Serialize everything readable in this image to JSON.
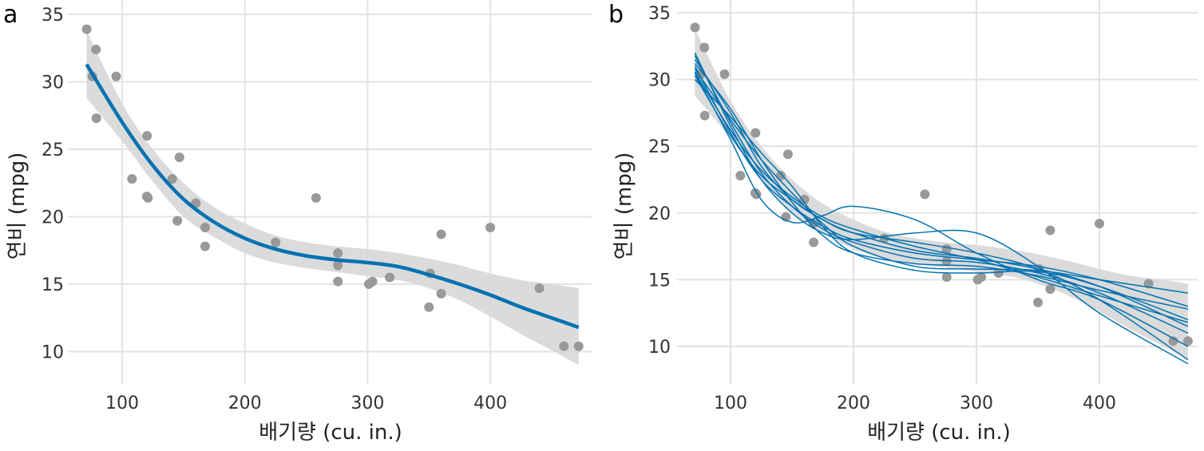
{
  "chart_data": [
    {
      "panel_label": "a",
      "type": "scatter",
      "xlabel": "배기량 (cu. in.)",
      "ylabel": "연비 (mpg)",
      "xticks": [
        100,
        200,
        300,
        400
      ],
      "yticks": [
        10,
        15,
        20,
        25,
        30,
        35
      ],
      "grid": true,
      "colors": {
        "points": "#999999",
        "line": "#0072B2",
        "band": "#D9D9D9"
      },
      "points": [
        [
          160,
          21.0
        ],
        [
          160,
          21.0
        ],
        [
          108,
          22.8
        ],
        [
          258,
          21.4
        ],
        [
          360,
          18.7
        ],
        [
          225,
          18.1
        ],
        [
          360,
          14.3
        ],
        [
          146.7,
          24.4
        ],
        [
          140.8,
          22.8
        ],
        [
          167.6,
          19.2
        ],
        [
          167.6,
          17.8
        ],
        [
          275.8,
          16.4
        ],
        [
          275.8,
          17.3
        ],
        [
          275.8,
          15.2
        ],
        [
          472,
          10.4
        ],
        [
          460,
          10.4
        ],
        [
          440,
          14.7
        ],
        [
          78.7,
          32.4
        ],
        [
          75.7,
          30.4
        ],
        [
          71.1,
          33.9
        ],
        [
          120.1,
          21.5
        ],
        [
          318,
          15.5
        ],
        [
          304,
          15.2
        ],
        [
          350,
          13.3
        ],
        [
          400,
          19.2
        ],
        [
          79,
          27.3
        ],
        [
          120.3,
          26.0
        ],
        [
          95.1,
          30.4
        ],
        [
          351,
          15.8
        ],
        [
          145,
          19.7
        ],
        [
          301,
          15.0
        ],
        [
          121,
          21.4
        ]
      ],
      "smooth_x": [
        71,
        100,
        125,
        150,
        175,
        200,
        225,
        250,
        275,
        300,
        325,
        350,
        375,
        400,
        425,
        450,
        472
      ],
      "smooth_y": [
        31.3,
        27.0,
        23.8,
        21.3,
        19.6,
        18.4,
        17.6,
        17.1,
        16.8,
        16.6,
        16.3,
        15.7,
        15.0,
        14.2,
        13.3,
        12.5,
        11.8
      ],
      "band_lower": [
        28.8,
        25.6,
        22.6,
        20.0,
        18.5,
        17.3,
        16.6,
        16.2,
        15.9,
        15.6,
        15.3,
        14.7,
        13.8,
        12.6,
        11.3,
        10.1,
        9.0
      ],
      "band_upper": [
        33.8,
        28.4,
        25.0,
        22.5,
        20.7,
        19.5,
        18.6,
        18.1,
        17.8,
        17.6,
        17.3,
        16.9,
        16.4,
        15.8,
        15.3,
        15.0,
        14.7
      ]
    },
    {
      "panel_label": "b",
      "type": "scatter",
      "xlabel": "배기량 (cu. in.)",
      "ylabel": "연비 (mpg)",
      "xticks": [
        100,
        200,
        300,
        400
      ],
      "yticks": [
        10,
        15,
        20,
        25,
        30,
        35
      ],
      "grid": true,
      "colors": {
        "points": "#999999",
        "line": "#0072B2",
        "band": "#D9D9D9"
      },
      "curve_x": [
        71,
        100,
        125,
        150,
        175,
        200,
        250,
        300,
        350,
        400,
        472
      ],
      "curves": [
        [
          31.5,
          27.5,
          23.5,
          21.0,
          19.5,
          18.5,
          17.2,
          16.6,
          15.8,
          14.5,
          11.5
        ],
        [
          30.5,
          25.5,
          21.0,
          19.3,
          19.8,
          20.5,
          19.5,
          17.0,
          15.0,
          13.5,
          10.0
        ],
        [
          32.0,
          26.5,
          22.5,
          20.0,
          18.5,
          18.0,
          18.5,
          18.5,
          16.0,
          12.5,
          8.7
        ],
        [
          30.8,
          27.0,
          24.0,
          21.5,
          19.2,
          17.5,
          16.0,
          15.8,
          15.7,
          15.0,
          14.0
        ],
        [
          31.0,
          26.0,
          22.5,
          20.5,
          19.0,
          18.0,
          17.0,
          16.5,
          16.0,
          15.0,
          13.0
        ],
        [
          30.0,
          27.2,
          24.5,
          22.0,
          19.0,
          17.0,
          15.7,
          15.5,
          15.6,
          14.5,
          12.0
        ],
        [
          31.8,
          26.8,
          23.0,
          20.5,
          18.8,
          17.8,
          16.6,
          16.3,
          15.5,
          14.0,
          11.0
        ],
        [
          30.3,
          25.8,
          22.8,
          21.0,
          19.5,
          18.5,
          17.8,
          17.0,
          15.8,
          13.5,
          9.0
        ],
        [
          31.2,
          27.8,
          24.0,
          20.8,
          18.3,
          17.0,
          16.2,
          16.0,
          15.3,
          14.2,
          12.8
        ],
        [
          30.6,
          26.2,
          23.2,
          21.2,
          19.7,
          18.8,
          17.5,
          16.5,
          15.2,
          13.8,
          11.8
        ]
      ]
    }
  ]
}
